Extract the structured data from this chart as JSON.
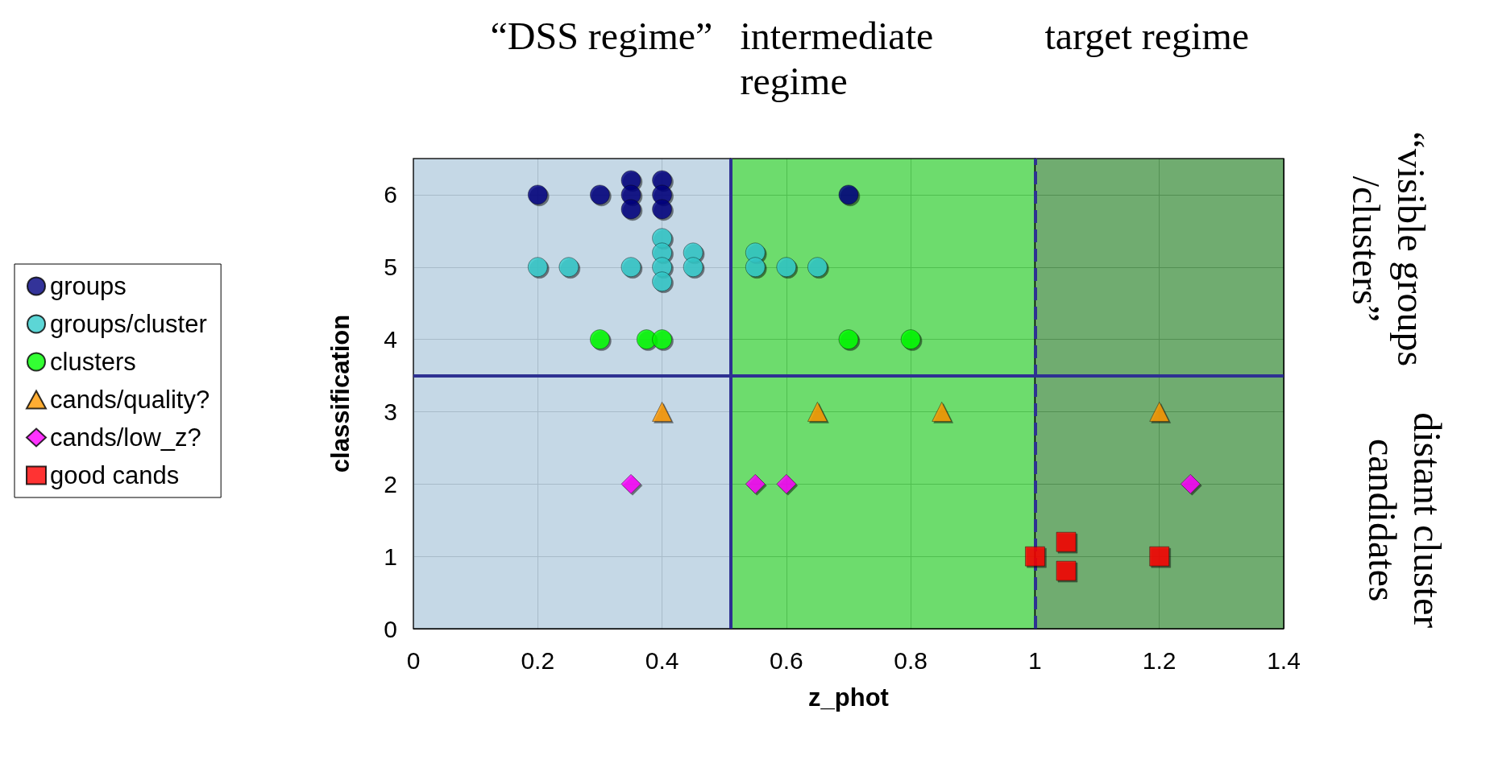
{
  "chart_data": {
    "type": "scatter",
    "xlabel": "z_phot",
    "ylabel": "classification",
    "xlim": [
      0,
      1.4
    ],
    "xticks": [
      0,
      0.2,
      0.4,
      0.6,
      0.8,
      1,
      1.2,
      1.4
    ],
    "ylim": [
      0,
      6.5
    ],
    "yticks": [
      0,
      1,
      2,
      3,
      4,
      5,
      6
    ],
    "grid": true,
    "legend": "left",
    "series": [
      {
        "name": "groups",
        "color": "#000080",
        "marker": "circle",
        "x": [
          0.7,
          0.2,
          0.3,
          0.35,
          0.35,
          0.35,
          0.4,
          0.4,
          0.4
        ],
        "values": [
          6,
          6,
          6,
          6.2,
          6,
          5.8,
          6.2,
          6,
          5.8
        ]
      },
      {
        "name": "groups/cluster",
        "color": "#33cccc",
        "marker": "circle",
        "x": [
          0.2,
          0.25,
          0.35,
          0.4,
          0.4,
          0.4,
          0.4,
          0.45,
          0.45,
          0.55,
          0.55,
          0.6,
          0.65
        ],
        "values": [
          5,
          5,
          5,
          5.4,
          5.2,
          5,
          4.8,
          5.2,
          5,
          5.2,
          5,
          5,
          5
        ]
      },
      {
        "name": "clusters",
        "color": "#00ff00",
        "marker": "circle",
        "x": [
          0.3,
          0.375,
          0.4,
          0.7,
          0.8
        ],
        "values": [
          4,
          4,
          4,
          4,
          4
        ]
      },
      {
        "name": "cands/quality?",
        "color": "#ff9900",
        "marker": "triangle",
        "x": [
          0.4,
          0.65,
          0.85,
          1.2
        ],
        "values": [
          3,
          3,
          3,
          3
        ]
      },
      {
        "name": "cands/low_z?",
        "color": "#ff00ff",
        "marker": "diamond",
        "x": [
          0.35,
          0.55,
          0.6,
          1.25
        ],
        "values": [
          2,
          2,
          2,
          2
        ]
      },
      {
        "name": "good cands",
        "color": "#ff0000",
        "marker": "square",
        "x": [
          1,
          1.05,
          1.05,
          1.2
        ],
        "values": [
          1,
          1.2,
          0.8,
          1
        ]
      }
    ],
    "ref_lines": [
      {
        "axis": "x",
        "value": 0.51,
        "color": "#2e3192",
        "line_style": "solid"
      },
      {
        "axis": "x",
        "value": 1,
        "color": "#2e3192",
        "line_style": "dashed"
      },
      {
        "axis": "y",
        "value": 3.5,
        "color": "#2e3192",
        "line_style": "solid"
      }
    ],
    "bands": [
      {
        "axis": "x",
        "from": 0,
        "to": 0.51,
        "color": "#c5dcec"
      },
      {
        "axis": "x",
        "from": 0.51,
        "to": 1,
        "color": "#5ee05e"
      },
      {
        "axis": "x",
        "from": 1,
        "to": 1.4,
        "color": "#62a862"
      }
    ],
    "annotations": [
      "“DSS regime”",
      "intermediate\nregime",
      "target regime",
      "“visible groups\n/clusters”",
      "distant cluster\ncandidates"
    ]
  }
}
